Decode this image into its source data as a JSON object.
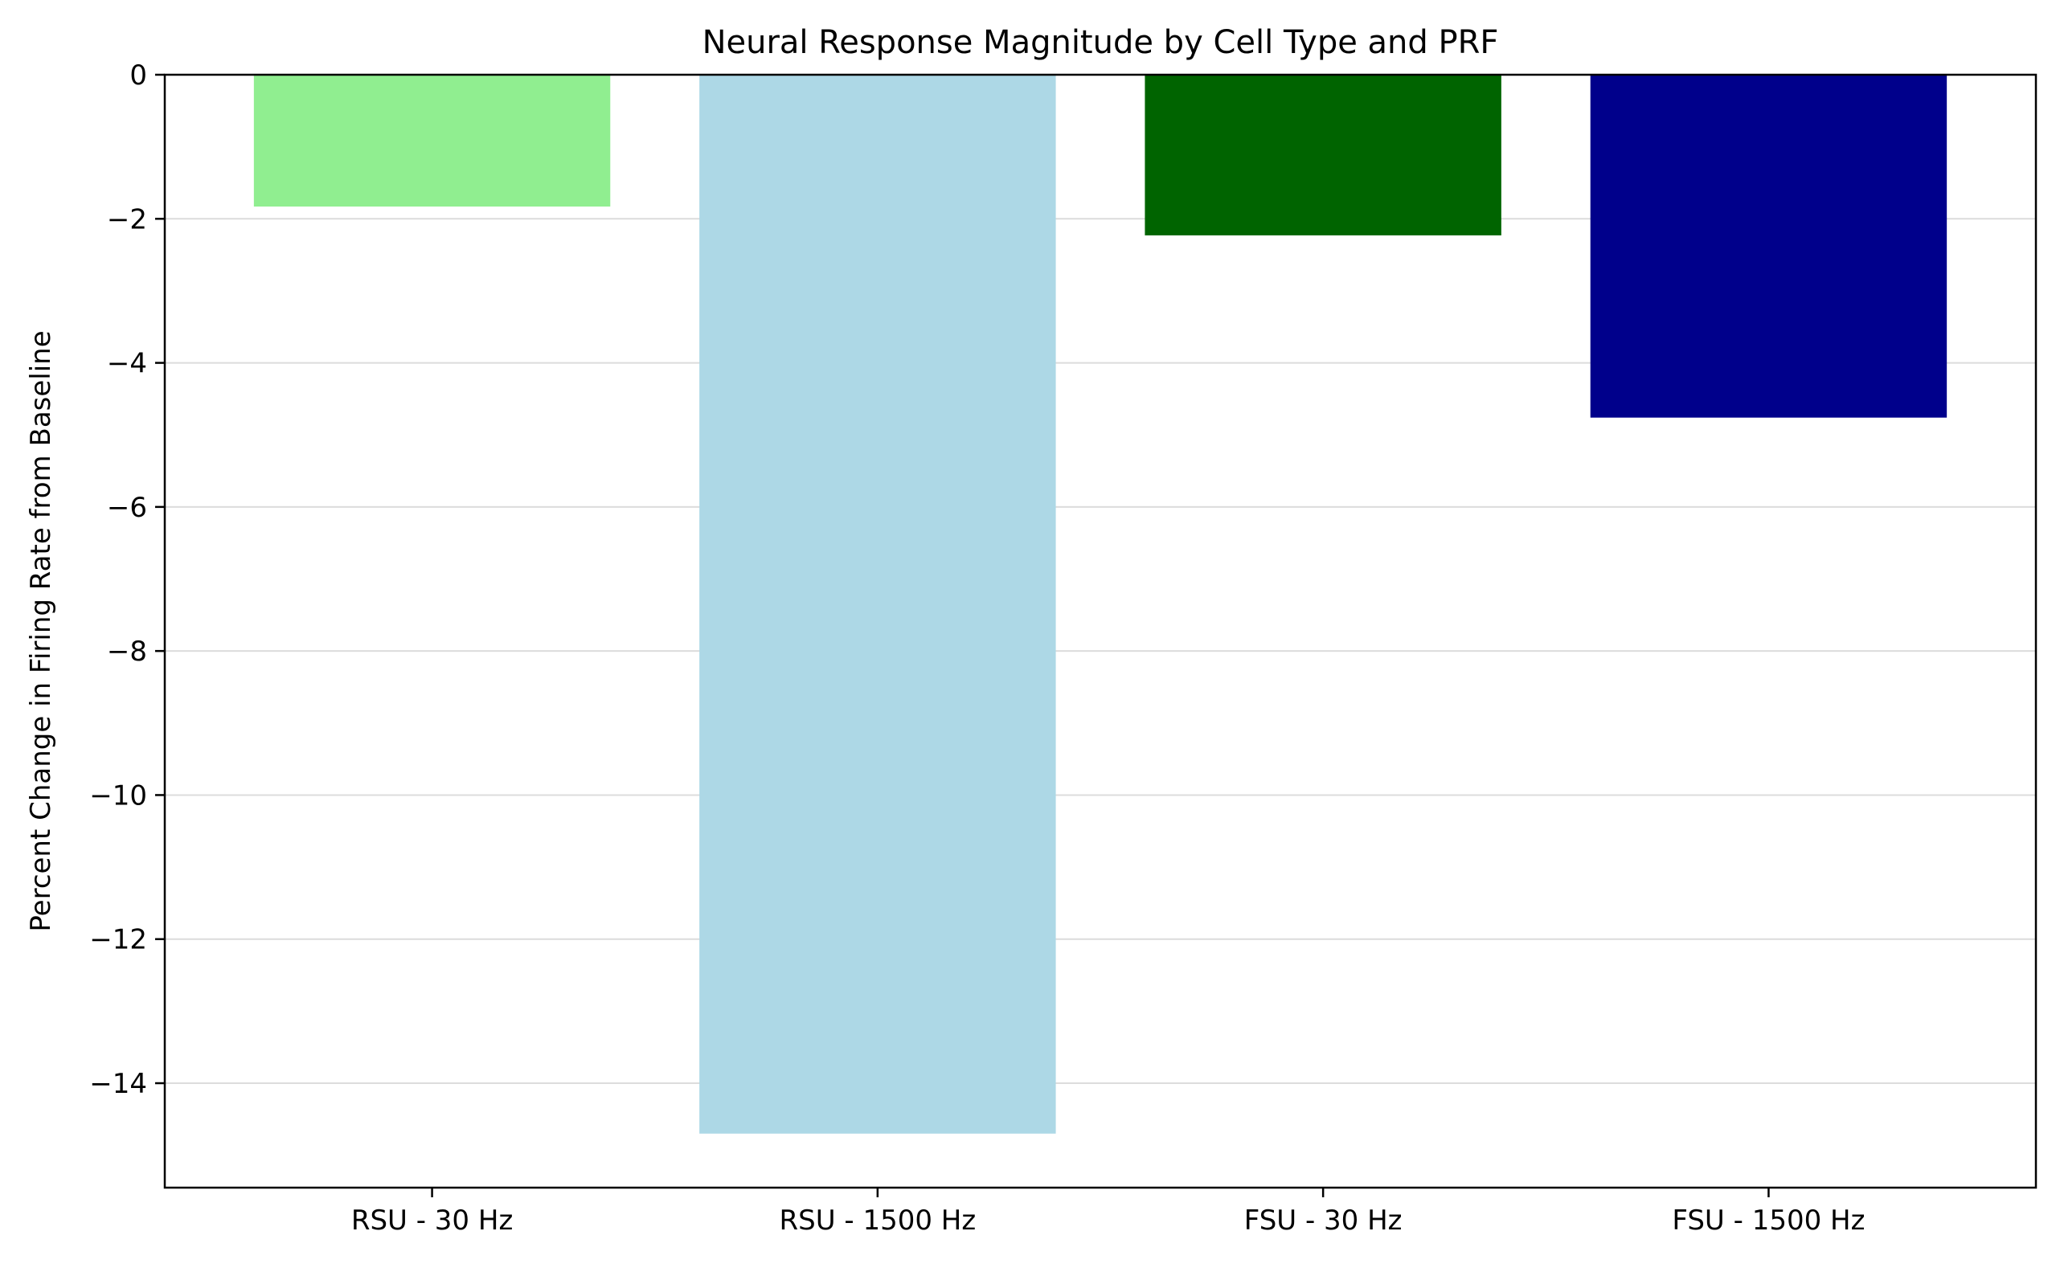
{
  "chart_data": {
    "type": "bar",
    "title": "Neural Response Magnitude by Cell Type and PRF",
    "xlabel": "",
    "ylabel": "Percent Change in Firing Rate from Baseline",
    "categories": [
      "RSU - 30 Hz",
      "RSU - 1500 Hz",
      "FSU - 30 Hz",
      "FSU - 1500 Hz"
    ],
    "values": [
      -1.83,
      -14.7,
      -2.23,
      -4.76
    ],
    "colors": [
      "#90ee90",
      "#add8e6",
      "#006400",
      "#00008b"
    ],
    "ylim": [
      -15.45,
      0
    ],
    "yticks": [
      0,
      -2,
      -4,
      -6,
      -8,
      -10,
      -12,
      -14
    ],
    "ytick_labels": [
      "0",
      "−2",
      "−4",
      "−6",
      "−8",
      "−10",
      "−12",
      "−14"
    ],
    "grid": "y",
    "legend": "none"
  }
}
